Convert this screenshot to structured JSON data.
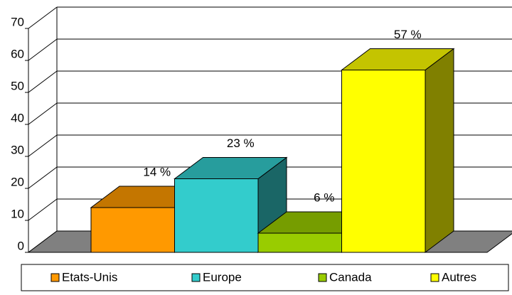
{
  "chart_data": {
    "type": "bar3d",
    "categories": [
      "Etats-Unis",
      "Europe",
      "Canada",
      "Autres"
    ],
    "values": [
      14,
      23,
      6,
      57
    ],
    "value_labels": [
      "14 %",
      "23 %",
      "6 %",
      "57 %"
    ],
    "colors": [
      "#ff9900",
      "#33cccc",
      "#99cc00",
      "#ffff00"
    ],
    "ylim": [
      0,
      70
    ],
    "yticks": [
      0,
      10,
      20,
      30,
      40,
      50,
      60,
      70
    ],
    "grid": true,
    "legend": "bottom"
  }
}
